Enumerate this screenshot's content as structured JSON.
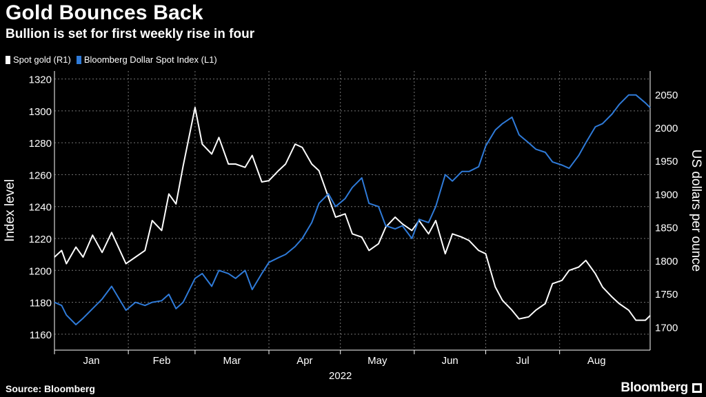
{
  "header": {
    "title": "Gold Bounces Back",
    "subtitle": "Bullion is set for first weekly rise in four"
  },
  "footer": {
    "source": "Source: Bloomberg",
    "brand": "Bloomberg"
  },
  "colors": {
    "background": "#000000",
    "gold": "#ffffff",
    "dollar": "#2f7bd9",
    "grid": "#777777"
  },
  "chart_data": {
    "type": "line",
    "title": "Gold Bounces Back",
    "subtitle": "Bullion is set for first weekly rise in four",
    "legend": [
      {
        "name": "Spot gold (R1)",
        "color": "#ffffff"
      },
      {
        "name": "Bloomberg Dollar Spot Index (L1)",
        "color": "#2f7bd9"
      }
    ],
    "legend_position": "top-left",
    "grid": true,
    "x_axis": {
      "ticks": [
        "Jan",
        "Feb",
        "Mar",
        "Apr",
        "May",
        "Jun",
        "Jul",
        "Aug"
      ],
      "year_label": "2022",
      "range": [
        "2022-01-01",
        "2022-09-08"
      ]
    },
    "left_axis": {
      "label": "Index level",
      "range": [
        1150,
        1325
      ],
      "ticks": [
        1160,
        1180,
        1200,
        1220,
        1240,
        1260,
        1280,
        1300,
        1320
      ]
    },
    "right_axis": {
      "label": "US dollars per ounce",
      "range": [
        1665,
        2085
      ],
      "ticks": [
        1700,
        1750,
        1800,
        1850,
        1900,
        1950,
        2000,
        2050
      ]
    },
    "series": [
      {
        "name": "Spot gold (R1)",
        "axis": "right",
        "x": [
          "2022-01-01",
          "2022-01-04",
          "2022-01-06",
          "2022-01-10",
          "2022-01-13",
          "2022-01-17",
          "2022-01-21",
          "2022-01-25",
          "2022-01-31",
          "2022-02-04",
          "2022-02-08",
          "2022-02-11",
          "2022-02-15",
          "2022-02-18",
          "2022-02-21",
          "2022-02-24",
          "2022-03-01",
          "2022-03-04",
          "2022-03-08",
          "2022-03-11",
          "2022-03-15",
          "2022-03-18",
          "2022-03-22",
          "2022-03-25",
          "2022-03-29",
          "2022-04-01",
          "2022-04-05",
          "2022-04-08",
          "2022-04-12",
          "2022-04-15",
          "2022-04-19",
          "2022-04-22",
          "2022-04-26",
          "2022-04-29",
          "2022-05-03",
          "2022-05-06",
          "2022-05-10",
          "2022-05-13",
          "2022-05-17",
          "2022-05-20",
          "2022-05-24",
          "2022-05-27",
          "2022-05-31",
          "2022-06-03",
          "2022-06-07",
          "2022-06-10",
          "2022-06-14",
          "2022-06-17",
          "2022-06-21",
          "2022-06-24",
          "2022-06-28",
          "2022-07-01",
          "2022-07-05",
          "2022-07-08",
          "2022-07-12",
          "2022-07-15",
          "2022-07-19",
          "2022-07-22",
          "2022-07-26",
          "2022-07-29",
          "2022-08-02",
          "2022-08-05",
          "2022-08-09",
          "2022-08-12",
          "2022-08-16",
          "2022-08-19",
          "2022-08-23",
          "2022-08-26",
          "2022-08-30",
          "2022-09-02",
          "2022-09-06",
          "2022-09-08"
        ],
        "values": [
          1805,
          1815,
          1795,
          1820,
          1805,
          1838,
          1812,
          1842,
          1795,
          1805,
          1815,
          1860,
          1845,
          1900,
          1885,
          1942,
          2030,
          1975,
          1960,
          1985,
          1945,
          1945,
          1940,
          1958,
          1918,
          1920,
          1935,
          1945,
          1975,
          1970,
          1945,
          1935,
          1895,
          1865,
          1870,
          1840,
          1835,
          1815,
          1825,
          1850,
          1865,
          1855,
          1845,
          1860,
          1840,
          1860,
          1810,
          1840,
          1835,
          1830,
          1815,
          1810,
          1760,
          1740,
          1725,
          1712,
          1715,
          1725,
          1735,
          1765,
          1770,
          1785,
          1790,
          1800,
          1780,
          1760,
          1745,
          1735,
          1725,
          1710,
          1710,
          1717
        ]
      },
      {
        "name": "Bloomberg Dollar Spot Index (L1)",
        "axis": "left",
        "x": [
          "2022-01-01",
          "2022-01-04",
          "2022-01-06",
          "2022-01-10",
          "2022-01-13",
          "2022-01-17",
          "2022-01-21",
          "2022-01-25",
          "2022-01-31",
          "2022-02-04",
          "2022-02-08",
          "2022-02-11",
          "2022-02-15",
          "2022-02-18",
          "2022-02-21",
          "2022-02-24",
          "2022-03-01",
          "2022-03-04",
          "2022-03-08",
          "2022-03-11",
          "2022-03-15",
          "2022-03-18",
          "2022-03-22",
          "2022-03-25",
          "2022-03-29",
          "2022-04-01",
          "2022-04-05",
          "2022-04-08",
          "2022-04-12",
          "2022-04-15",
          "2022-04-19",
          "2022-04-22",
          "2022-04-26",
          "2022-04-29",
          "2022-05-03",
          "2022-05-06",
          "2022-05-10",
          "2022-05-13",
          "2022-05-17",
          "2022-05-20",
          "2022-05-24",
          "2022-05-27",
          "2022-05-31",
          "2022-06-03",
          "2022-06-07",
          "2022-06-10",
          "2022-06-14",
          "2022-06-17",
          "2022-06-21",
          "2022-06-24",
          "2022-06-28",
          "2022-07-01",
          "2022-07-05",
          "2022-07-08",
          "2022-07-12",
          "2022-07-15",
          "2022-07-19",
          "2022-07-22",
          "2022-07-26",
          "2022-07-29",
          "2022-08-02",
          "2022-08-05",
          "2022-08-09",
          "2022-08-12",
          "2022-08-16",
          "2022-08-19",
          "2022-08-23",
          "2022-08-26",
          "2022-08-30",
          "2022-09-02",
          "2022-09-06",
          "2022-09-08"
        ],
        "values": [
          1180,
          1178,
          1172,
          1166,
          1170,
          1176,
          1182,
          1190,
          1175,
          1180,
          1178,
          1180,
          1181,
          1185,
          1176,
          1180,
          1195,
          1198,
          1190,
          1200,
          1198,
          1195,
          1200,
          1188,
          1198,
          1205,
          1208,
          1210,
          1215,
          1220,
          1230,
          1242,
          1248,
          1240,
          1245,
          1252,
          1258,
          1242,
          1240,
          1228,
          1226,
          1228,
          1220,
          1232,
          1230,
          1240,
          1260,
          1256,
          1262,
          1262,
          1265,
          1278,
          1288,
          1292,
          1296,
          1285,
          1280,
          1276,
          1274,
          1268,
          1266,
          1264,
          1272,
          1280,
          1290,
          1292,
          1298,
          1304,
          1310,
          1310,
          1305,
          1302
        ]
      }
    ]
  }
}
